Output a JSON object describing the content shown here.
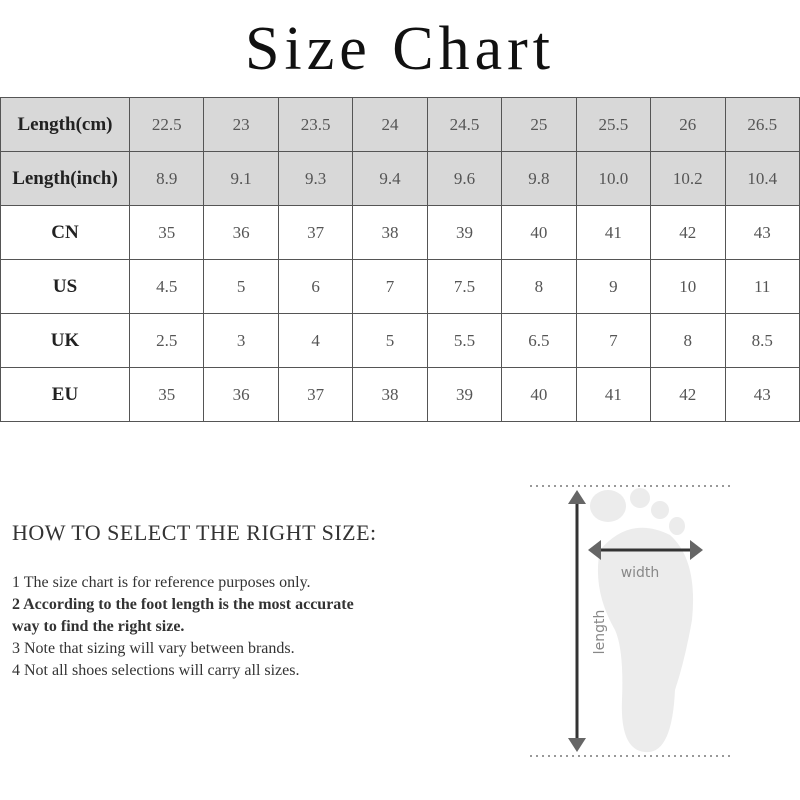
{
  "title": "Size Chart",
  "table": {
    "rows": [
      {
        "label": "Length(cm)",
        "shaded": true,
        "values": [
          "22.5",
          "23",
          "23.5",
          "24",
          "24.5",
          "25",
          "25.5",
          "26",
          "26.5"
        ]
      },
      {
        "label": "Length(inch)",
        "shaded": true,
        "values": [
          "8.9",
          "9.1",
          "9.3",
          "9.4",
          "9.6",
          "9.8",
          "10.0",
          "10.2",
          "10.4"
        ]
      },
      {
        "label": "CN",
        "shaded": false,
        "values": [
          "35",
          "36",
          "37",
          "38",
          "39",
          "40",
          "41",
          "42",
          "43"
        ]
      },
      {
        "label": "US",
        "shaded": false,
        "values": [
          "4.5",
          "5",
          "6",
          "7",
          "7.5",
          "8",
          "9",
          "10",
          "11"
        ]
      },
      {
        "label": "UK",
        "shaded": false,
        "values": [
          "2.5",
          "3",
          "4",
          "5",
          "5.5",
          "6.5",
          "7",
          "8",
          "8.5"
        ]
      },
      {
        "label": "EU",
        "shaded": false,
        "values": [
          "35",
          "36",
          "37",
          "38",
          "39",
          "40",
          "41",
          "42",
          "43"
        ]
      }
    ]
  },
  "howto": {
    "heading": "HOW TO SELECT THE RIGHT SIZE:",
    "notes": [
      {
        "text": "1 The size chart is for reference purposes only.",
        "bold": false
      },
      {
        "text": "2 According to the foot length is the most accurate way to find the right size.",
        "bold": true
      },
      {
        "text": "3 Note that sizing will vary between brands.",
        "bold": false
      },
      {
        "text": "4 Not all shoes selections will carry all sizes.",
        "bold": false
      }
    ]
  },
  "diagram": {
    "width_label": "width",
    "length_label": "length"
  }
}
